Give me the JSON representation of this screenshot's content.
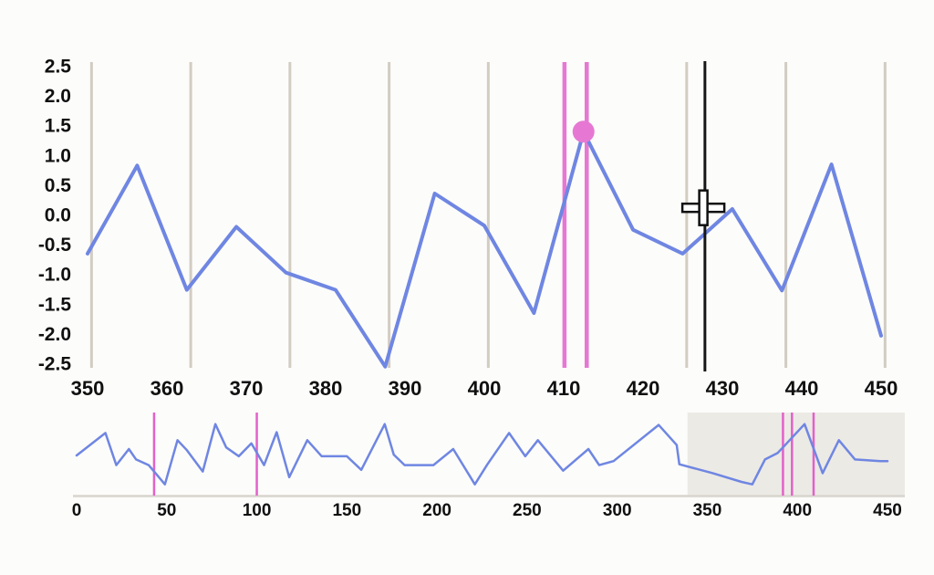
{
  "page": {
    "background": "#fcfcfa"
  },
  "colors": {
    "series_line": "#6f86e2",
    "annotation_pink": "#e678d3",
    "overview_pink": "#e361c9",
    "marker_pink": "#e678d3",
    "gridline": "#d2ccc2",
    "cursor_line": "#161616",
    "crosshair_fill": "#ffffff",
    "crosshair_stroke": "#111111",
    "selection_shade": "#eceae5",
    "overview_axis_line": "#d8d4ce",
    "axis_text": "#101010"
  },
  "chart_data": [
    {
      "id": "main",
      "type": "line",
      "title": "",
      "xlabel": "",
      "ylabel": "",
      "xlim": [
        350,
        450
      ],
      "ylim": [
        -2.57,
        2.57
      ],
      "x_tick_labels": [
        "350",
        "360",
        "370",
        "380",
        "390",
        "400",
        "410",
        "420",
        "430",
        "440",
        "450"
      ],
      "x_ticks": [
        350,
        360,
        370,
        380,
        390,
        400,
        410,
        420,
        430,
        440,
        450
      ],
      "y_tick_labels": [
        "2.5",
        "2.0",
        "1.5",
        "1.0",
        "0.5",
        "0.0",
        "-0.5",
        "-1.0",
        "-1.5",
        "-2.0",
        "-2.5"
      ],
      "y_ticks": [
        2.5,
        2.0,
        1.5,
        1.0,
        0.5,
        0.0,
        -0.5,
        -1.0,
        -1.5,
        -2.0,
        -2.5
      ],
      "grid": "vertical-only",
      "gridline_xs": [
        350.5,
        363,
        375.5,
        388,
        400.5,
        413,
        425.5,
        438,
        450.5
      ],
      "series": [
        {
          "name": "signal",
          "x": [
            350,
            356.25,
            362.5,
            368.75,
            375,
            381.25,
            387.5,
            393.75,
            400,
            406.25,
            412.5,
            418.75,
            425,
            431.25,
            437.5,
            443.75,
            450
          ],
          "y": [
            -0.65,
            0.83,
            -1.26,
            -0.2,
            -0.97,
            -1.26,
            -2.55,
            0.36,
            -0.18,
            -1.65,
            1.4,
            -0.25,
            -0.65,
            0.1,
            -1.27,
            0.85,
            -2.03
          ]
        }
      ],
      "annotations": {
        "pink_vlines_x": [
          410.1,
          412.9
        ],
        "marker_point": {
          "x": 412.5,
          "y": 1.4
        },
        "cursor_vline_x": 427.8,
        "crosshair_cursor": {
          "x": 427.6,
          "y": 0.12
        }
      }
    },
    {
      "id": "overview",
      "type": "line",
      "title": "",
      "xlim": [
        0,
        455
      ],
      "x_tick_labels": [
        "0",
        "50",
        "100",
        "150",
        "200",
        "250",
        "300",
        "350",
        "400",
        "450"
      ],
      "x_ticks": [
        0,
        50,
        100,
        150,
        200,
        250,
        300,
        350,
        400,
        450
      ],
      "selected_range": [
        339,
        455
      ],
      "pink_vlines_x": [
        43,
        100,
        392,
        397,
        409
      ],
      "series": [
        {
          "name": "signal-overview",
          "x": [
            0,
            16,
            22,
            29,
            33,
            40,
            49,
            56,
            61,
            70,
            77,
            83,
            90,
            97,
            104,
            111,
            118,
            128,
            136,
            150,
            158,
            171,
            176,
            182,
            198,
            209,
            221,
            228,
            240,
            249,
            256,
            270,
            284,
            290,
            298,
            323,
            333,
            334.5,
            353,
            369,
            375,
            382,
            389,
            392,
            404,
            414,
            423,
            432,
            446,
            450
          ],
          "y_norm": [
            0.5,
            0.78,
            0.38,
            0.58,
            0.45,
            0.38,
            0.14,
            0.69,
            0.57,
            0.3,
            0.89,
            0.6,
            0.49,
            0.65,
            0.38,
            0.79,
            0.23,
            0.69,
            0.49,
            0.49,
            0.32,
            0.89,
            0.51,
            0.38,
            0.38,
            0.58,
            0.14,
            0.39,
            0.78,
            0.49,
            0.69,
            0.31,
            0.58,
            0.38,
            0.43,
            0.88,
            0.63,
            0.39,
            0.28,
            0.17,
            0.14,
            0.45,
            0.53,
            0.6,
            0.89,
            0.28,
            0.69,
            0.45,
            0.43,
            0.43
          ]
        }
      ]
    }
  ]
}
